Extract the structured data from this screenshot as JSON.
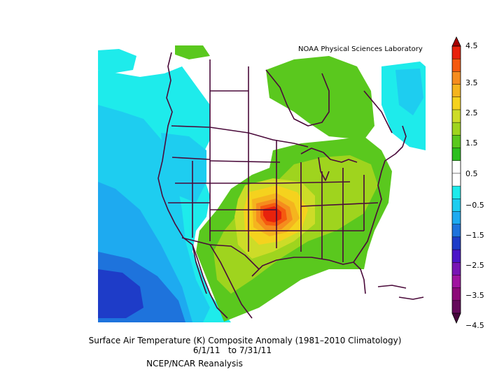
{
  "credit": "NOAA Physical Sciences Laboratory",
  "caption": {
    "line1": "Surface Air Temperature (K) Composite Anomaly (1981–2010 Climatology)",
    "line2": "6/1/11   to 7/31/11",
    "line3": "NCEP/NCAR Reanalysis"
  },
  "colorbar": {
    "labels": [
      "4.5",
      "3.5",
      "2.5",
      "1.5",
      "0.5",
      "−0.5",
      "−1.5",
      "−2.5",
      "−3.5",
      "−4.5"
    ],
    "colors": {
      "dark_red": "#a60000",
      "red": "#e8220c",
      "orange_red": "#f55a0f",
      "orange": "#f58c1e",
      "amber": "#f5b41e",
      "yellow": "#f5d21e",
      "yellow_green": "#cddc28",
      "light_green": "#9fd41e",
      "green": "#5ac81e",
      "bright_green": "#2bbf1e",
      "white": "#ffffff",
      "cyan": "#1eebeb",
      "sky": "#1ecdf0",
      "light_blue": "#1eaaf0",
      "blue": "#1e73dc",
      "dark_blue": "#1e3cc8",
      "indigo": "#4b14c8",
      "violet": "#7814b4",
      "purple": "#a014a0",
      "dark_purple": "#8c0a78",
      "plum": "#640a5a",
      "deep_plum": "#46063c"
    }
  }
}
